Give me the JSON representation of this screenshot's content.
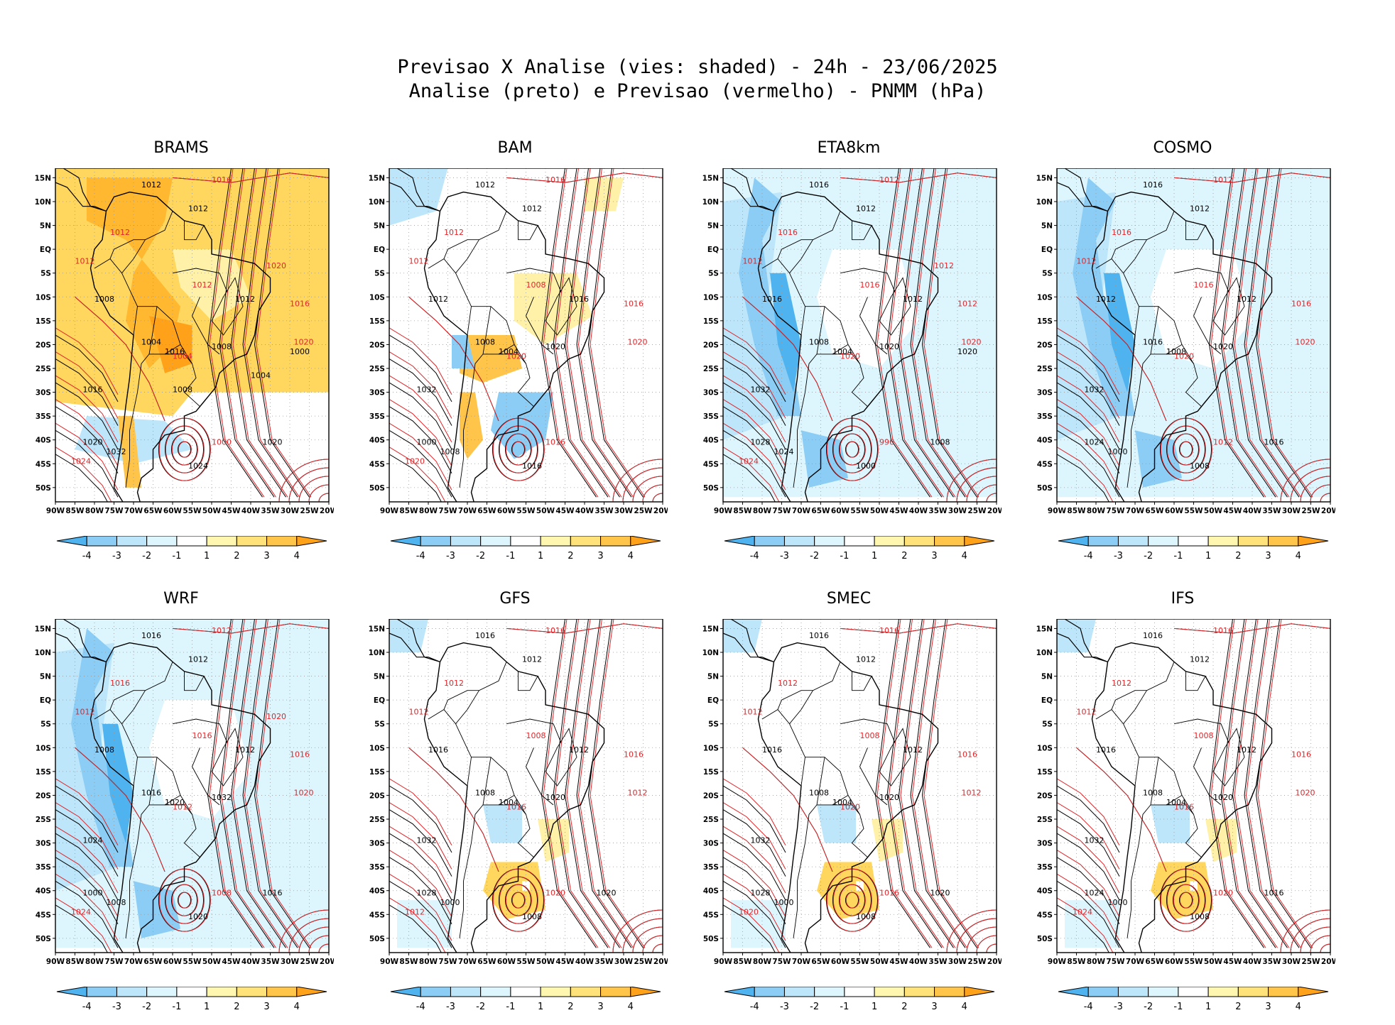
{
  "header": {
    "line1": "Previsao X Analise (vies: shaded) - 24h - 23/06/2025",
    "line2": "Analise (preto) e Previsao (vermelho) - PNMM (hPa)"
  },
  "axes": {
    "lat_labels": [
      "15N",
      "10N",
      "5N",
      "EQ",
      "5S",
      "10S",
      "15S",
      "20S",
      "25S",
      "30S",
      "35S",
      "40S",
      "45S",
      "50S"
    ],
    "lon_labels": [
      "90W",
      "85W",
      "80W",
      "75W",
      "70W",
      "65W",
      "60W",
      "55W",
      "50W",
      "45W",
      "40W",
      "35W",
      "30W",
      "25W",
      "20W"
    ]
  },
  "colorbar": {
    "ticks": [
      "-4",
      "-3",
      "-2",
      "-1",
      "1",
      "2",
      "3",
      "4"
    ],
    "colors": [
      "#4fb3f0",
      "#8ccdf5",
      "#bde6fa",
      "#ddf5fd",
      "#ffffff",
      "#fff7b0",
      "#ffe37a",
      "#ffc44a",
      "#ffa21a"
    ]
  },
  "colors": {
    "analysis": "#000000",
    "forecast": "#e0262a"
  },
  "panels": [
    {
      "model": "BRAMS",
      "bias": "warm",
      "labels": {
        "k": [
          "1012",
          "1012",
          "1012",
          "1008",
          "1004",
          "1016",
          "1008",
          "1016",
          "1020",
          "1032",
          "1024",
          "1020",
          "1000",
          "1004",
          "1008"
        ],
        "r": [
          "1016",
          "1012",
          "1012",
          "1016",
          "1020",
          "1012",
          "1004",
          "1000",
          "1024",
          "1020"
        ]
      }
    },
    {
      "model": "BAM",
      "bias": "mixed",
      "labels": {
        "k": [
          "1012",
          "1012",
          "1016",
          "1012",
          "1008",
          "1004",
          "1020",
          "1032",
          "1000",
          "1008",
          "1016"
        ],
        "r": [
          "1016",
          "1012",
          "1012",
          "1016",
          "1020",
          "1008",
          "1020",
          "1016",
          "1020"
        ]
      }
    },
    {
      "model": "ETA8km",
      "bias": "cold",
      "labels": {
        "k": [
          "1016",
          "1012",
          "1012",
          "1016",
          "1008",
          "1004",
          "1020",
          "1032",
          "1028",
          "1024",
          "1000",
          "1008",
          "1020"
        ],
        "r": [
          "1012",
          "1016",
          "1012",
          "1012",
          "1020",
          "1016",
          "1020",
          "996",
          "1024",
          "1012"
        ]
      }
    },
    {
      "model": "COSMO",
      "bias": "cold",
      "labels": {
        "k": [
          "1016",
          "1012",
          "1012",
          "1012",
          "1016",
          "1008",
          "1020",
          "1032",
          "1024",
          "1000",
          "1008",
          "1016"
        ],
        "r": [
          "1012",
          "1016",
          "1012",
          "1016",
          "1020",
          "1016",
          "1020",
          "1012"
        ]
      }
    },
    {
      "model": "WRF",
      "bias": "cold",
      "labels": {
        "k": [
          "1016",
          "1012",
          "1012",
          "1008",
          "1016",
          "1020",
          "1032",
          "1024",
          "1000",
          "1008",
          "1020",
          "1016"
        ],
        "r": [
          "1012",
          "1016",
          "1012",
          "1016",
          "1020",
          "1016",
          "1012",
          "1008",
          "1024",
          "1020"
        ]
      }
    },
    {
      "model": "GFS",
      "bias": "slight",
      "labels": {
        "k": [
          "1016",
          "1012",
          "1012",
          "1016",
          "1008",
          "1004",
          "1020",
          "1032",
          "1028",
          "1000",
          "1008",
          "1020"
        ],
        "r": [
          "1016",
          "1012",
          "1012",
          "1016",
          "1012",
          "1008",
          "1016",
          "1020",
          "1012"
        ]
      }
    },
    {
      "model": "SMEC",
      "bias": "slight",
      "labels": {
        "k": [
          "1016",
          "1012",
          "1012",
          "1016",
          "1008",
          "1004",
          "1020",
          "1032",
          "1028",
          "1000",
          "1008",
          "1020"
        ],
        "r": [
          "1016",
          "1012",
          "1012",
          "1016",
          "1012",
          "1008",
          "1020",
          "1016",
          "1020"
        ]
      }
    },
    {
      "model": "IFS",
      "bias": "slight",
      "labels": {
        "k": [
          "1016",
          "1012",
          "1012",
          "1016",
          "1008",
          "1004",
          "1020",
          "1032",
          "1024",
          "1000",
          "1008",
          "1016"
        ],
        "r": [
          "1016",
          "1012",
          "1012",
          "1016",
          "1020",
          "1008",
          "1016",
          "1020",
          "1024"
        ]
      }
    }
  ]
}
